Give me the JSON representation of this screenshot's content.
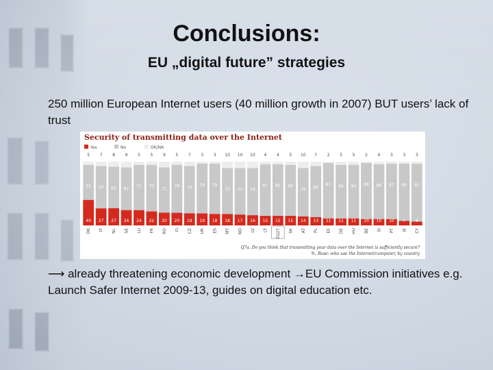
{
  "slide": {
    "title": "Conclusions:",
    "subtitle": "EU „digital future” strategies",
    "paragraph1": "250 million European Internet users (40 million growth in 2007) BUT users’ lack of trust",
    "paragraph2": "⟶ already threatening economic development →EU Commission initiatives e.g. Launch Safer Internet 2009-13, guides on digital education etc."
  },
  "colors": {
    "yes": "#d42a1e",
    "no": "#c8c8c8",
    "dk": "#ededed",
    "chart_title": "#8a1f14"
  },
  "chart_data": {
    "type": "bar",
    "stacked": true,
    "orientation": "vertical",
    "title": "Security of transmitting data over the Internet",
    "legend": [
      "Yes",
      "No",
      "DK/NA"
    ],
    "legend_position": "top-left",
    "categories": [
      "DK",
      "IT",
      "NL",
      "SE",
      "LU",
      "FR",
      "RO",
      "FI",
      "CZ",
      "UK",
      "ES",
      "MT",
      "NO",
      "LV",
      "LT",
      "EU27",
      "SK",
      "AT",
      "PL",
      "EE",
      "DE",
      "HU",
      "BE",
      "SI",
      "PT",
      "IE",
      "CY"
    ],
    "series": [
      {
        "name": "Yes",
        "values": [
          40,
          27,
          27,
          24,
          24,
          22,
          20,
          20,
          19,
          19,
          18,
          18,
          17,
          16,
          15,
          15,
          15,
          14,
          13,
          11,
          11,
          11,
          10,
          10,
          10,
          7,
          6
        ]
      },
      {
        "name": "No",
        "values": [
          55,
          67,
          65,
          67,
          71,
          73,
          71,
          76,
          74,
          79,
          79,
          73,
          73,
          74,
          81,
          81,
          80,
          76,
          80,
          87,
          84,
          84,
          88,
          86,
          87,
          90,
          91
        ]
      },
      {
        "name": "DK/NA",
        "values": [
          5,
          7,
          8,
          9,
          5,
          5,
          9,
          5,
          7,
          3,
          3,
          10,
          10,
          10,
          4,
          4,
          5,
          10,
          7,
          2,
          5,
          5,
          2,
          4,
          3,
          3,
          3
        ]
      }
    ],
    "ylim": [
      0,
      100
    ],
    "footnote_question": "Q7a. Do you think that transmitting your data over the Internet is sufficiently secure?",
    "footnote_base": "%, Base: who use the Internet/computer, by country"
  }
}
